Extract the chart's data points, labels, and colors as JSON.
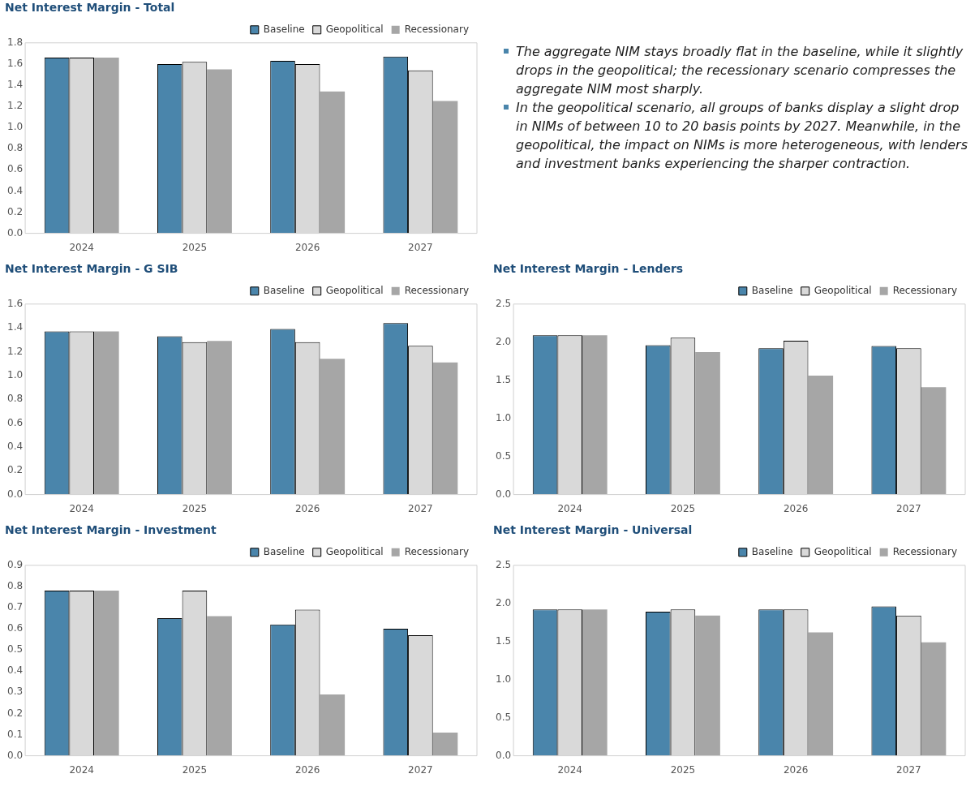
{
  "chart_data": [
    {
      "type": "bar",
      "title": "Net Interest Margin - Total",
      "categories": [
        "2024",
        "2025",
        "2026",
        "2027"
      ],
      "ylim": [
        0,
        1.8
      ],
      "yticks": [
        {
          "value": 0,
          "label": "0.0"
        },
        0.2,
        0.4,
        0.6,
        0.8,
        {
          "value": 1,
          "label": "1.0"
        },
        1.2,
        1.4,
        1.6,
        1.8
      ],
      "grid": false,
      "legend": "top right",
      "series": [
        {
          "name": "Baseline",
          "color": "#4a85ab",
          "values": [
            1.66,
            1.6,
            1.63,
            1.67
          ]
        },
        {
          "name": "Geopolitical",
          "color": "#d9d9d9",
          "values": [
            1.66,
            1.62,
            1.6,
            1.54
          ]
        },
        {
          "name": "Recessionary",
          "color": "#a6a6a6",
          "values": [
            1.66,
            1.55,
            1.34,
            1.25
          ]
        }
      ]
    },
    {
      "type": "other",
      "annotations": [
        "The aggregate NIM stays broadly flat in the baseline, while it slightly drops in the geopolitical; the recessionary scenario compresses the aggregate NIM most sharply.",
        "In the geopolitical scenario, all groups of banks display a slight drop in NIMs of between 10 to 20 basis points by 2027. Meanwhile, in the geopolitical, the impact on NIMs is more heterogeneous, with lenders and investment banks experiencing the sharper contraction."
      ]
    },
    {
      "type": "bar",
      "title": "Net Interest Margin - G SIB",
      "categories": [
        "2024",
        "2025",
        "2026",
        "2027"
      ],
      "ylim": [
        0,
        1.6
      ],
      "yticks": [
        {
          "value": 0,
          "label": "0.0"
        },
        0.2,
        0.4,
        0.6,
        0.8,
        {
          "value": 1,
          "label": "1.0"
        },
        1.2,
        1.4,
        1.6
      ],
      "grid": false,
      "legend": "top right",
      "series": [
        {
          "name": "Baseline",
          "color": "#4a85ab",
          "values": [
            1.37,
            1.33,
            1.39,
            1.44
          ]
        },
        {
          "name": "Geopolitical",
          "color": "#d9d9d9",
          "values": [
            1.37,
            1.28,
            1.28,
            1.25
          ]
        },
        {
          "name": "Recessionary",
          "color": "#a6a6a6",
          "values": [
            1.37,
            1.29,
            1.14,
            1.11
          ]
        }
      ]
    },
    {
      "type": "bar",
      "title": "Net Interest Margin - Lenders",
      "categories": [
        "2024",
        "2025",
        "2026",
        "2027"
      ],
      "ylim": [
        0,
        2.5
      ],
      "yticks": [
        {
          "value": 0,
          "label": "0.0"
        },
        0.5,
        {
          "value": 1,
          "label": "1.0"
        },
        1.5,
        {
          "value": 2,
          "label": "2.0"
        },
        2.5
      ],
      "grid": false,
      "legend": "top right",
      "series": [
        {
          "name": "Baseline",
          "color": "#4a85ab",
          "values": [
            2.09,
            1.96,
            1.92,
            1.95
          ]
        },
        {
          "name": "Geopolitical",
          "color": "#d9d9d9",
          "values": [
            2.09,
            2.06,
            2.02,
            1.92
          ]
        },
        {
          "name": "Recessionary",
          "color": "#a6a6a6",
          "values": [
            2.09,
            1.87,
            1.56,
            1.41
          ]
        }
      ]
    },
    {
      "type": "bar",
      "title": "Net Interest Margin - Investment",
      "categories": [
        "2024",
        "2025",
        "2026",
        "2027"
      ],
      "ylim": [
        0,
        0.9
      ],
      "yticks": [
        {
          "value": 0,
          "label": "0.0"
        },
        0.1,
        0.2,
        0.3,
        0.4,
        0.5,
        0.6,
        0.7,
        0.8,
        0.9
      ],
      "grid": false,
      "legend": "top right",
      "series": [
        {
          "name": "Baseline",
          "color": "#4a85ab",
          "values": [
            0.78,
            0.65,
            0.62,
            0.6
          ]
        },
        {
          "name": "Geopolitical",
          "color": "#d9d9d9",
          "values": [
            0.78,
            0.78,
            0.69,
            0.57
          ]
        },
        {
          "name": "Recessionary",
          "color": "#a6a6a6",
          "values": [
            0.78,
            0.66,
            0.29,
            0.11
          ]
        }
      ]
    },
    {
      "type": "bar",
      "title": "Net Interest Margin - Universal",
      "categories": [
        "2024",
        "2025",
        "2026",
        "2027"
      ],
      "ylim": [
        0,
        2.5
      ],
      "yticks": [
        {
          "value": 0,
          "label": "0.0"
        },
        0.5,
        {
          "value": 1,
          "label": "1.0"
        },
        1.5,
        {
          "value": 2,
          "label": "2.0"
        },
        2.5
      ],
      "grid": false,
      "legend": "top right",
      "series": [
        {
          "name": "Baseline",
          "color": "#4a85ab",
          "values": [
            1.92,
            1.89,
            1.92,
            1.96
          ]
        },
        {
          "name": "Geopolitical",
          "color": "#d9d9d9",
          "values": [
            1.92,
            1.92,
            1.92,
            1.84
          ]
        },
        {
          "name": "Recessionary",
          "color": "#a6a6a6",
          "values": [
            1.92,
            1.84,
            1.62,
            1.49
          ]
        }
      ]
    }
  ]
}
